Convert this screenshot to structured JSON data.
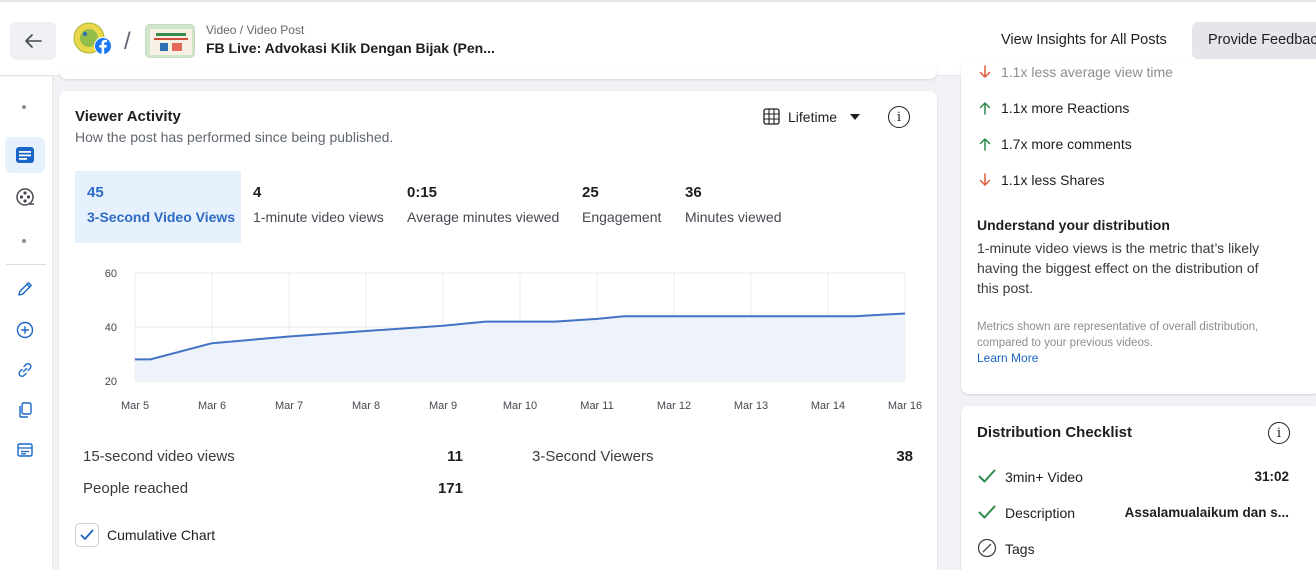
{
  "header": {
    "breadcrumb": "Video / Video Post",
    "post_title": "FB Live: Advokasi Klik Dengan Bijak (Pen...",
    "view_all_label": "View Insights for All Posts",
    "feedback_label": "Provide Feedback",
    "separator": "/",
    "thumb_caption": "DENGAN BIJAK"
  },
  "left_rail": {
    "icons": [
      "dot",
      "posts-icon",
      "reels-icon",
      "dot",
      "edit-icon",
      "add-icon",
      "link-icon",
      "copy-icon",
      "card-icon"
    ]
  },
  "viewer_activity": {
    "title": "Viewer Activity",
    "subtitle": "How the post has performed since being published.",
    "range_label": "Lifetime",
    "info_glyph": "i",
    "tabs": [
      {
        "value": "45",
        "label": "3-Second Video Views",
        "active": true
      },
      {
        "value": "4",
        "label": "1-minute video views",
        "active": false
      },
      {
        "value": "0:15",
        "label": "Average minutes viewed",
        "active": false
      },
      {
        "value": "25",
        "label": "Engagement",
        "active": false
      },
      {
        "value": "36",
        "label": "Minutes viewed",
        "active": false
      }
    ],
    "stats": [
      {
        "label": "15-second video views",
        "value": "11"
      },
      {
        "label": "People reached",
        "value": "171"
      },
      {
        "label": "3-Second Viewers",
        "value": "38"
      }
    ],
    "cumulative_label": "Cumulative Chart",
    "cumulative_checked": true
  },
  "chart_data": {
    "type": "area",
    "categories": [
      "Mar 5",
      "Mar 6",
      "Mar 7",
      "Mar 8",
      "Mar 9",
      "Mar 10",
      "Mar 11",
      "Mar 12",
      "Mar 13",
      "Mar 14",
      "Mar 16"
    ],
    "x": [
      5,
      5.2,
      6,
      7,
      8,
      9,
      9.55,
      10.45,
      11,
      11.35,
      12,
      13,
      14,
      14.35,
      15
    ],
    "values": [
      28,
      28,
      34,
      36.5,
      38.5,
      40.5,
      42,
      42,
      43,
      44,
      44,
      44,
      44,
      44,
      45
    ],
    "yticks": [
      20,
      40,
      60
    ],
    "ylim": [
      20,
      60
    ],
    "grid": true,
    "line_color": "#4473c5",
    "fill_color": "#eef2fb"
  },
  "comparison": {
    "rows": [
      {
        "direction": "down",
        "text": "1.1x less average view time",
        "cut": true
      },
      {
        "direction": "up",
        "text": "1.1x more Reactions",
        "cut": false
      },
      {
        "direction": "up",
        "text": "1.7x more comments",
        "cut": false
      },
      {
        "direction": "down",
        "text": "1.1x less Shares",
        "cut": false
      }
    ],
    "up_color": "#2e8a4e",
    "down_color": "#e05a3a"
  },
  "distribution": {
    "heading": "Understand your distribution",
    "text": "1-minute video views is the metric that’s likely having the biggest effect on the distribution of this post.",
    "note": "Metrics shown are representative of overall distribution, compared to your previous videos.",
    "link": "Learn More"
  },
  "checklist": {
    "title": "Distribution Checklist",
    "info_glyph": "i",
    "items": [
      {
        "status": "check",
        "name": "3min+ Video",
        "value": "31:02"
      },
      {
        "status": "check",
        "name": "Description",
        "value": "Assalamualaikum dan s..."
      },
      {
        "status": "none",
        "name": "Tags",
        "value": ""
      }
    ]
  },
  "colors": {
    "accent": "#2d6cc4",
    "check_green": "#2e8a4e"
  }
}
